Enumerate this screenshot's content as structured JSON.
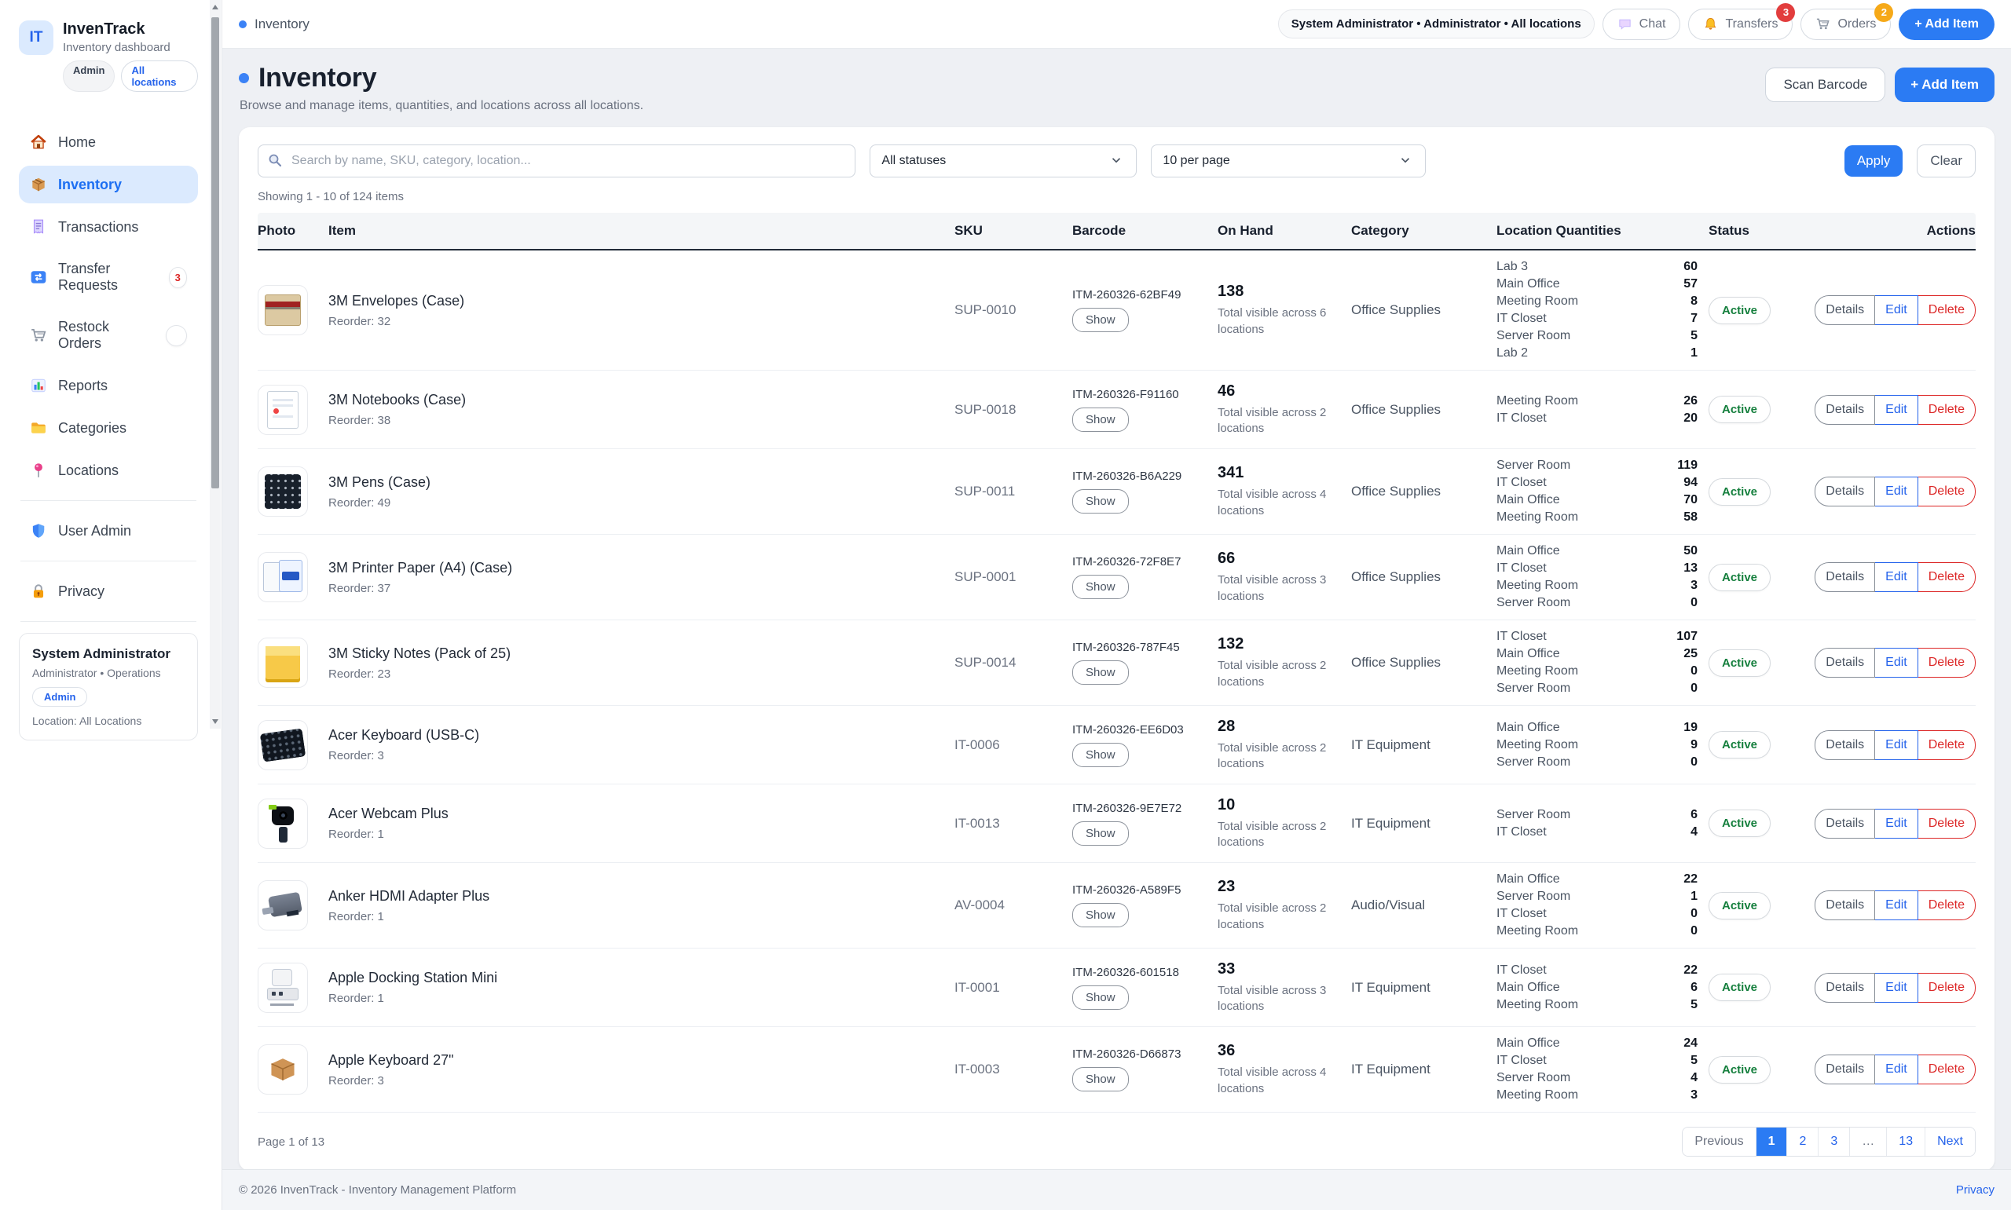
{
  "sidebar": {
    "logo_text": "IT",
    "app_name": "InvenTrack",
    "app_subtitle": "Inventory dashboard",
    "badges": {
      "admin": "Admin",
      "locations": "All locations"
    },
    "items": [
      {
        "label": "Home",
        "icon": "home"
      },
      {
        "label": "Inventory",
        "icon": "box",
        "active": true
      },
      {
        "label": "Transactions",
        "icon": "receipt"
      },
      {
        "label": "Transfer Requests",
        "icon": "transfer",
        "badge": "3"
      },
      {
        "label": "Restock Orders",
        "icon": "cart",
        "badge": ""
      },
      {
        "label": "Reports",
        "icon": "chart"
      },
      {
        "label": "Categories",
        "icon": "folder"
      },
      {
        "label": "Locations",
        "icon": "pin"
      }
    ],
    "secondary": [
      {
        "label": "User Admin",
        "icon": "shield"
      },
      {
        "label": "Privacy",
        "icon": "lock"
      }
    ],
    "user_card": {
      "name": "System Administrator",
      "role": "Administrator • Operations",
      "badge": "Admin",
      "location": "Location: All Locations"
    }
  },
  "topbar": {
    "breadcrumb": "Inventory",
    "user_pill": "System Administrator • Administrator • All locations",
    "chat_label": "Chat",
    "transfers_label": "Transfers",
    "transfers_badge": "3",
    "orders_label": "Orders",
    "orders_badge": "2",
    "add_item_label": "+ Add Item"
  },
  "page": {
    "title": "Inventory",
    "subtitle": "Browse and manage items, quantities, and locations across all locations.",
    "scan_barcode_label": "Scan Barcode",
    "add_item_label": "+ Add Item"
  },
  "filters": {
    "search_placeholder": "Search by name, SKU, category, location...",
    "status_filter": "All statuses",
    "per_page": "10 per page",
    "apply_label": "Apply",
    "clear_label": "Clear",
    "showing_text": "Showing 1 - 10 of 124 items"
  },
  "table": {
    "columns": [
      "Photo",
      "Item",
      "SKU",
      "Barcode",
      "On Hand",
      "Category",
      "Location Quantities",
      "Status",
      "Actions"
    ],
    "show_label": "Show",
    "actions": [
      "Details",
      "Edit",
      "Delete"
    ],
    "rows": [
      {
        "name": "3M Envelopes (Case)",
        "reorder": "Reorder: 32",
        "sku": "SUP-0010",
        "barcode": "ITM-260326-62BF49",
        "on_hand": "138",
        "on_hand_note": "Total visible across 6 locations",
        "category": "Office Supplies",
        "locations": [
          [
            "Lab 3",
            "60"
          ],
          [
            "Main Office",
            "57"
          ],
          [
            "Meeting Room",
            "8"
          ],
          [
            "IT Closet",
            "7"
          ],
          [
            "Server Room",
            "5"
          ],
          [
            "Lab 2",
            "1"
          ]
        ],
        "status": "Active",
        "thumb": "envelope"
      },
      {
        "name": "3M Notebooks (Case)",
        "reorder": "Reorder: 38",
        "sku": "SUP-0018",
        "barcode": "ITM-260326-F91160",
        "on_hand": "46",
        "on_hand_note": "Total visible across 2 locations",
        "category": "Office Supplies",
        "locations": [
          [
            "Meeting Room",
            "26"
          ],
          [
            "IT Closet",
            "20"
          ]
        ],
        "status": "Active",
        "thumb": "notebook"
      },
      {
        "name": "3M Pens (Case)",
        "reorder": "Reorder: 49",
        "sku": "SUP-0011",
        "barcode": "ITM-260326-B6A229",
        "on_hand": "341",
        "on_hand_note": "Total visible across 4 locations",
        "category": "Office Supplies",
        "locations": [
          [
            "Server Room",
            "119"
          ],
          [
            "IT Closet",
            "94"
          ],
          [
            "Main Office",
            "70"
          ],
          [
            "Meeting Room",
            "58"
          ]
        ],
        "status": "Active",
        "thumb": "pens"
      },
      {
        "name": "3M Printer Paper (A4) (Case)",
        "reorder": "Reorder: 37",
        "sku": "SUP-0001",
        "barcode": "ITM-260326-72F8E7",
        "on_hand": "66",
        "on_hand_note": "Total visible across 3 locations",
        "category": "Office Supplies",
        "locations": [
          [
            "Main Office",
            "50"
          ],
          [
            "IT Closet",
            "13"
          ],
          [
            "Meeting Room",
            "3"
          ],
          [
            "Server Room",
            "0"
          ]
        ],
        "status": "Active",
        "thumb": "paper"
      },
      {
        "name": "3M Sticky Notes (Pack of 25)",
        "reorder": "Reorder: 23",
        "sku": "SUP-0014",
        "barcode": "ITM-260326-787F45",
        "on_hand": "132",
        "on_hand_note": "Total visible across 2 locations",
        "category": "Office Supplies",
        "locations": [
          [
            "IT Closet",
            "107"
          ],
          [
            "Main Office",
            "25"
          ],
          [
            "Meeting Room",
            "0"
          ],
          [
            "Server Room",
            "0"
          ]
        ],
        "status": "Active",
        "thumb": "sticky"
      },
      {
        "name": "Acer Keyboard (USB-C)",
        "reorder": "Reorder: 3",
        "sku": "IT-0006",
        "barcode": "ITM-260326-EE6D03",
        "on_hand": "28",
        "on_hand_note": "Total visible across 2 locations",
        "category": "IT Equipment",
        "locations": [
          [
            "Main Office",
            "19"
          ],
          [
            "Meeting Room",
            "9"
          ],
          [
            "Server Room",
            "0"
          ]
        ],
        "status": "Active",
        "thumb": "keyboard"
      },
      {
        "name": "Acer Webcam Plus",
        "reorder": "Reorder: 1",
        "sku": "IT-0013",
        "barcode": "ITM-260326-9E7E72",
        "on_hand": "10",
        "on_hand_note": "Total visible across 2 locations",
        "category": "IT Equipment",
        "locations": [
          [
            "Server Room",
            "6"
          ],
          [
            "IT Closet",
            "4"
          ]
        ],
        "status": "Active",
        "thumb": "webcam"
      },
      {
        "name": "Anker HDMI Adapter Plus",
        "reorder": "Reorder: 1",
        "sku": "AV-0004",
        "barcode": "ITM-260326-A589F5",
        "on_hand": "23",
        "on_hand_note": "Total visible across 2 locations",
        "category": "Audio/Visual",
        "locations": [
          [
            "Main Office",
            "22"
          ],
          [
            "Server Room",
            "1"
          ],
          [
            "IT Closet",
            "0"
          ],
          [
            "Meeting Room",
            "0"
          ]
        ],
        "status": "Active",
        "thumb": "hdmi"
      },
      {
        "name": "Apple Docking Station Mini",
        "reorder": "Reorder: 1",
        "sku": "IT-0001",
        "barcode": "ITM-260326-601518",
        "on_hand": "33",
        "on_hand_note": "Total visible across 3 locations",
        "category": "IT Equipment",
        "locations": [
          [
            "IT Closet",
            "22"
          ],
          [
            "Main Office",
            "6"
          ],
          [
            "Meeting Room",
            "5"
          ]
        ],
        "status": "Active",
        "thumb": "dock"
      },
      {
        "name": "Apple Keyboard 27\"",
        "reorder": "Reorder: 3",
        "sku": "IT-0003",
        "barcode": "ITM-260326-D66873",
        "on_hand": "36",
        "on_hand_note": "Total visible across 4 locations",
        "category": "IT Equipment",
        "locations": [
          [
            "Main Office",
            "24"
          ],
          [
            "IT Closet",
            "5"
          ],
          [
            "Server Room",
            "4"
          ],
          [
            "Meeting Room",
            "3"
          ]
        ],
        "status": "Active",
        "thumb": "parcel"
      }
    ]
  },
  "pagination": {
    "page_label": "Page 1 of 13",
    "previous": "Previous",
    "pages": [
      "1",
      "2",
      "3",
      "…",
      "13"
    ],
    "active_page": "1",
    "next": "Next"
  },
  "footer": {
    "copyright": "© 2026 InvenTrack - Inventory Management Platform",
    "privacy": "Privacy"
  },
  "colors": {
    "primary": "#2b7bf3",
    "active_nav_bg": "#dbeafe",
    "status_active": "#157f3d",
    "badge_red": "#e23d3d",
    "badge_amber": "#f6a918"
  }
}
